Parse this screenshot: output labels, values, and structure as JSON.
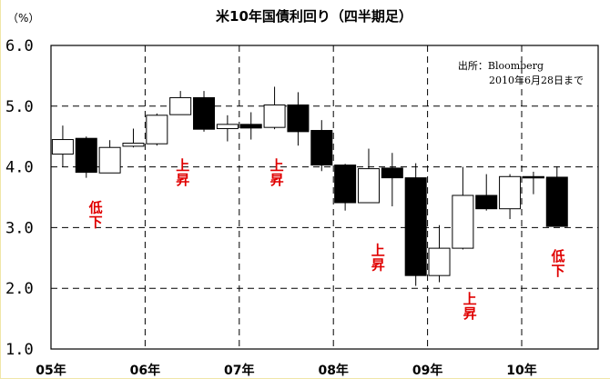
{
  "chart_data": {
    "type": "candlestick",
    "title": "米10年国債利回り（四半期足）",
    "unit_label": "（%）",
    "source_lines": [
      "出所：Bloomberg",
      "2010年6月28日まで"
    ],
    "ylim": [
      1.0,
      6.0
    ],
    "yticks": [
      "1.0",
      "2.0",
      "3.0",
      "4.0",
      "5.0",
      "6.0"
    ],
    "ytick_values": [
      1.0,
      2.0,
      3.0,
      4.0,
      5.0,
      6.0
    ],
    "xtick_labels": [
      "05年",
      "06年",
      "07年",
      "08年",
      "09年",
      "10年"
    ],
    "grid": true,
    "candles": [
      {
        "period": "2005Q1",
        "open": 4.21,
        "high": 4.68,
        "low": 4.0,
        "close": 4.45
      },
      {
        "period": "2005Q2",
        "open": 4.47,
        "high": 4.5,
        "low": 3.82,
        "close": 3.91
      },
      {
        "period": "2005Q3",
        "open": 3.9,
        "high": 4.44,
        "low": 3.9,
        "close": 4.32
      },
      {
        "period": "2005Q4",
        "open": 4.34,
        "high": 4.63,
        "low": 4.32,
        "close": 4.39
      },
      {
        "period": "2006Q1",
        "open": 4.38,
        "high": 4.88,
        "low": 4.35,
        "close": 4.85
      },
      {
        "period": "2006Q2",
        "open": 4.86,
        "high": 5.25,
        "low": 4.86,
        "close": 5.14
      },
      {
        "period": "2006Q3",
        "open": 5.14,
        "high": 5.25,
        "low": 4.58,
        "close": 4.62
      },
      {
        "period": "2006Q4",
        "open": 4.63,
        "high": 4.85,
        "low": 4.42,
        "close": 4.7
      },
      {
        "period": "2007Q1",
        "open": 4.7,
        "high": 4.9,
        "low": 4.45,
        "close": 4.64
      },
      {
        "period": "2007Q2",
        "open": 4.65,
        "high": 5.32,
        "low": 4.62,
        "close": 5.02
      },
      {
        "period": "2007Q3",
        "open": 5.02,
        "high": 5.23,
        "low": 4.35,
        "close": 4.58
      },
      {
        "period": "2007Q4",
        "open": 4.6,
        "high": 4.77,
        "low": 3.93,
        "close": 4.03
      },
      {
        "period": "2008Q1",
        "open": 4.03,
        "high": 4.05,
        "low": 3.28,
        "close": 3.41
      },
      {
        "period": "2008Q2",
        "open": 3.41,
        "high": 4.3,
        "low": 3.41,
        "close": 3.97
      },
      {
        "period": "2008Q3",
        "open": 3.98,
        "high": 4.23,
        "low": 3.35,
        "close": 3.82
      },
      {
        "period": "2008Q4",
        "open": 3.82,
        "high": 4.06,
        "low": 2.04,
        "close": 2.21
      },
      {
        "period": "2009Q1",
        "open": 2.21,
        "high": 3.04,
        "low": 2.1,
        "close": 2.66
      },
      {
        "period": "2009Q2",
        "open": 2.66,
        "high": 4.0,
        "low": 2.64,
        "close": 3.53
      },
      {
        "period": "2009Q3",
        "open": 3.53,
        "high": 3.88,
        "low": 3.28,
        "close": 3.31
      },
      {
        "period": "2009Q4",
        "open": 3.31,
        "high": 3.88,
        "low": 3.14,
        "close": 3.84
      },
      {
        "period": "2010Q1",
        "open": 3.84,
        "high": 3.92,
        "low": 3.55,
        "close": 3.83
      },
      {
        "period": "2010Q2",
        "open": 3.83,
        "high": 4.01,
        "low": 3.02,
        "close": 3.02
      }
    ],
    "annotations": [
      {
        "text": "低下",
        "x_index": 1.4,
        "y": 3.25
      },
      {
        "text": "上昇",
        "x_index": 5.1,
        "y": 3.95
      },
      {
        "text": "上昇",
        "x_index": 9.1,
        "y": 3.95
      },
      {
        "text": "上昇",
        "x_index": 13.4,
        "y": 2.55
      },
      {
        "text": "上昇",
        "x_index": 17.3,
        "y": 1.75
      },
      {
        "text": "低下",
        "x_index": 21.05,
        "y": 2.45
      }
    ]
  }
}
